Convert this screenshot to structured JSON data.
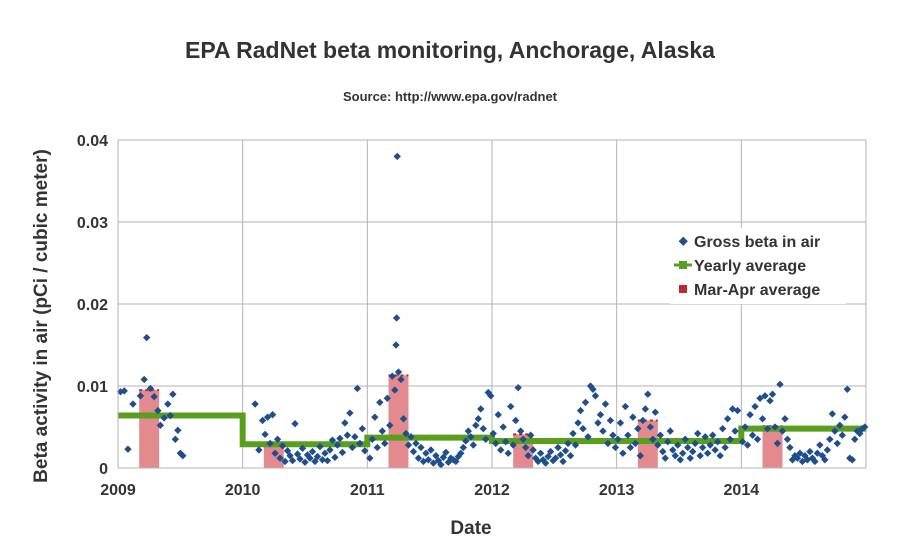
{
  "chart_data": {
    "type": "scatter",
    "title": "EPA RadNet beta monitoring, Anchorage, Alaska",
    "subtitle": "Source: http://www.epa.gov/radnet",
    "xlabel": "Date",
    "ylabel": "Beta activity in air (pCi / cubic meter)",
    "xlim": [
      2009,
      2015
    ],
    "ylim": [
      0,
      0.04
    ],
    "x_ticks": [
      "2009",
      "2010",
      "2011",
      "2012",
      "2013",
      "2014"
    ],
    "y_ticks": [
      "0",
      "0.01",
      "0.02",
      "0.03",
      "0.04"
    ],
    "grid": true,
    "legend_position": "right",
    "colors": {
      "gross_beta": "#1f4e8c",
      "yearly_average": "#5a9e1e",
      "mar_apr_average": "#c0282d",
      "mar_apr_fill": "#e38a8f",
      "grid": "#b3b3b3"
    },
    "series": [
      {
        "name": "Gross beta in air",
        "type": "scatter",
        "points": [
          [
            2009.02,
            0.0093
          ],
          [
            2009.05,
            0.0094
          ],
          [
            2009.08,
            0.0023
          ],
          [
            2009.12,
            0.0078
          ],
          [
            2009.18,
            0.0088
          ],
          [
            2009.21,
            0.0108
          ],
          [
            2009.23,
            0.0159
          ],
          [
            2009.26,
            0.0097
          ],
          [
            2009.29,
            0.0087
          ],
          [
            2009.32,
            0.007
          ],
          [
            2009.34,
            0.0052
          ],
          [
            2009.37,
            0.0061
          ],
          [
            2009.4,
            0.0078
          ],
          [
            2009.42,
            0.0064
          ],
          [
            2009.44,
            0.009
          ],
          [
            2009.46,
            0.0035
          ],
          [
            2009.48,
            0.0046
          ],
          [
            2009.5,
            0.0018
          ],
          [
            2009.52,
            0.0015
          ],
          [
            2010.1,
            0.0078
          ],
          [
            2010.13,
            0.0022
          ],
          [
            2010.16,
            0.0058
          ],
          [
            2010.18,
            0.0041
          ],
          [
            2010.2,
            0.0062
          ],
          [
            2010.22,
            0.003
          ],
          [
            2010.24,
            0.0065
          ],
          [
            2010.26,
            0.0018
          ],
          [
            2010.28,
            0.0035
          ],
          [
            2010.3,
            0.0012
          ],
          [
            2010.32,
            0.0027
          ],
          [
            2010.34,
            0.0008
          ],
          [
            2010.36,
            0.0021
          ],
          [
            2010.38,
            0.0015
          ],
          [
            2010.4,
            0.0009
          ],
          [
            2010.42,
            0.0054
          ],
          [
            2010.44,
            0.0017
          ],
          [
            2010.46,
            0.0011
          ],
          [
            2010.48,
            0.0024
          ],
          [
            2010.5,
            0.0007
          ],
          [
            2010.52,
            0.0016
          ],
          [
            2010.54,
            0.0012
          ],
          [
            2010.56,
            0.002
          ],
          [
            2010.58,
            0.0008
          ],
          [
            2010.6,
            0.0014
          ],
          [
            2010.62,
            0.0026
          ],
          [
            2010.64,
            0.001
          ],
          [
            2010.66,
            0.0018
          ],
          [
            2010.68,
            0.0009
          ],
          [
            2010.7,
            0.0022
          ],
          [
            2010.72,
            0.0034
          ],
          [
            2010.74,
            0.0013
          ],
          [
            2010.76,
            0.0028
          ],
          [
            2010.78,
            0.0036
          ],
          [
            2010.8,
            0.0019
          ],
          [
            2010.82,
            0.0055
          ],
          [
            2010.84,
            0.004
          ],
          [
            2010.86,
            0.0067
          ],
          [
            2010.88,
            0.0025
          ],
          [
            2010.9,
            0.0038
          ],
          [
            2010.92,
            0.0097
          ],
          [
            2010.94,
            0.003
          ],
          [
            2010.96,
            0.0048
          ],
          [
            2010.98,
            0.0021
          ],
          [
            2011.02,
            0.0012
          ],
          [
            2011.04,
            0.0035
          ],
          [
            2011.06,
            0.0062
          ],
          [
            2011.08,
            0.0025
          ],
          [
            2011.1,
            0.008
          ],
          [
            2011.12,
            0.0045
          ],
          [
            2011.14,
            0.003
          ],
          [
            2011.16,
            0.0085
          ],
          [
            2011.18,
            0.0052
          ],
          [
            2011.2,
            0.0112
          ],
          [
            2011.22,
            0.0095
          ],
          [
            2011.23,
            0.015
          ],
          [
            2011.235,
            0.0183
          ],
          [
            2011.24,
            0.038
          ],
          [
            2011.25,
            0.0117
          ],
          [
            2011.27,
            0.0108
          ],
          [
            2011.29,
            0.006
          ],
          [
            2011.31,
            0.0042
          ],
          [
            2011.33,
            0.0028
          ],
          [
            2011.35,
            0.0038
          ],
          [
            2011.37,
            0.002
          ],
          [
            2011.39,
            0.003
          ],
          [
            2011.41,
            0.0012
          ],
          [
            2011.43,
            0.0025
          ],
          [
            2011.45,
            0.0008
          ],
          [
            2011.47,
            0.0018
          ],
          [
            2011.49,
            0.001
          ],
          [
            2011.51,
            0.0022
          ],
          [
            2011.53,
            0.0006
          ],
          [
            2011.55,
            0.0015
          ],
          [
            2011.57,
            0.0009
          ],
          [
            2011.59,
            0.0004
          ],
          [
            2011.61,
            0.0013
          ],
          [
            2011.63,
            0.0019
          ],
          [
            2011.65,
            0.0007
          ],
          [
            2011.67,
            0.0012
          ],
          [
            2011.69,
            0.001
          ],
          [
            2011.71,
            0.0008
          ],
          [
            2011.73,
            0.0014
          ],
          [
            2011.75,
            0.0018
          ],
          [
            2011.77,
            0.0025
          ],
          [
            2011.79,
            0.0033
          ],
          [
            2011.81,
            0.0045
          ],
          [
            2011.83,
            0.0038
          ],
          [
            2011.85,
            0.0028
          ],
          [
            2011.87,
            0.0052
          ],
          [
            2011.89,
            0.006
          ],
          [
            2011.91,
            0.0072
          ],
          [
            2011.93,
            0.0048
          ],
          [
            2011.95,
            0.0035
          ],
          [
            2011.97,
            0.0092
          ],
          [
            2011.99,
            0.0088
          ],
          [
            2012.01,
            0.0042
          ],
          [
            2012.03,
            0.003
          ],
          [
            2012.05,
            0.0065
          ],
          [
            2012.07,
            0.0022
          ],
          [
            2012.09,
            0.005
          ],
          [
            2012.11,
            0.0032
          ],
          [
            2012.13,
            0.0018
          ],
          [
            2012.15,
            0.0075
          ],
          [
            2012.17,
            0.0028
          ],
          [
            2012.19,
            0.0058
          ],
          [
            2012.21,
            0.0098
          ],
          [
            2012.23,
            0.0045
          ],
          [
            2012.25,
            0.0035
          ],
          [
            2012.27,
            0.0025
          ],
          [
            2012.29,
            0.0015
          ],
          [
            2012.31,
            0.004
          ],
          [
            2012.33,
            0.0022
          ],
          [
            2012.35,
            0.0012
          ],
          [
            2012.37,
            0.0008
          ],
          [
            2012.39,
            0.0018
          ],
          [
            2012.41,
            0.001
          ],
          [
            2012.43,
            0.0006
          ],
          [
            2012.45,
            0.0014
          ],
          [
            2012.47,
            0.002
          ],
          [
            2012.49,
            0.0009
          ],
          [
            2012.51,
            0.0012
          ],
          [
            2012.53,
            0.0025
          ],
          [
            2012.55,
            0.0016
          ],
          [
            2012.57,
            0.0008
          ],
          [
            2012.59,
            0.0021
          ],
          [
            2012.61,
            0.003
          ],
          [
            2012.63,
            0.0015
          ],
          [
            2012.65,
            0.0042
          ],
          [
            2012.67,
            0.0028
          ],
          [
            2012.69,
            0.0055
          ],
          [
            2012.71,
            0.007
          ],
          [
            2012.73,
            0.0048
          ],
          [
            2012.75,
            0.008
          ],
          [
            2012.77,
            0.0038
          ],
          [
            2012.79,
            0.01
          ],
          [
            2012.81,
            0.0096
          ],
          [
            2012.83,
            0.0088
          ],
          [
            2012.85,
            0.0055
          ],
          [
            2012.87,
            0.0065
          ],
          [
            2012.89,
            0.0045
          ],
          [
            2012.91,
            0.0078
          ],
          [
            2012.93,
            0.003
          ],
          [
            2012.95,
            0.0058
          ],
          [
            2012.97,
            0.004
          ],
          [
            2012.99,
            0.0025
          ],
          [
            2013.01,
            0.0035
          ],
          [
            2013.03,
            0.0055
          ],
          [
            2013.05,
            0.0018
          ],
          [
            2013.07,
            0.0075
          ],
          [
            2013.09,
            0.004
          ],
          [
            2013.11,
            0.0025
          ],
          [
            2013.13,
            0.0062
          ],
          [
            2013.15,
            0.003
          ],
          [
            2013.17,
            0.0048
          ],
          [
            2013.19,
            0.0015
          ],
          [
            2013.21,
            0.0058
          ],
          [
            2013.23,
            0.0072
          ],
          [
            2013.25,
            0.009
          ],
          [
            2013.27,
            0.005
          ],
          [
            2013.29,
            0.0035
          ],
          [
            2013.31,
            0.0068
          ],
          [
            2013.33,
            0.0028
          ],
          [
            2013.35,
            0.004
          ],
          [
            2013.37,
            0.002
          ],
          [
            2013.39,
            0.0012
          ],
          [
            2013.41,
            0.0032
          ],
          [
            2013.43,
            0.0045
          ],
          [
            2013.45,
            0.0022
          ],
          [
            2013.47,
            0.0015
          ],
          [
            2013.49,
            0.0028
          ],
          [
            2013.51,
            0.001
          ],
          [
            2013.53,
            0.0018
          ],
          [
            2013.55,
            0.0035
          ],
          [
            2013.57,
            0.0025
          ],
          [
            2013.59,
            0.0012
          ],
          [
            2013.61,
            0.002
          ],
          [
            2013.63,
            0.003
          ],
          [
            2013.65,
            0.0042
          ],
          [
            2013.67,
            0.0015
          ],
          [
            2013.69,
            0.0025
          ],
          [
            2013.71,
            0.0038
          ],
          [
            2013.73,
            0.0018
          ],
          [
            2013.75,
            0.0028
          ],
          [
            2013.77,
            0.004
          ],
          [
            2013.79,
            0.0022
          ],
          [
            2013.81,
            0.0032
          ],
          [
            2013.83,
            0.0015
          ],
          [
            2013.85,
            0.0048
          ],
          [
            2013.87,
            0.0025
          ],
          [
            2013.89,
            0.006
          ],
          [
            2013.91,
            0.0035
          ],
          [
            2013.93,
            0.0072
          ],
          [
            2013.95,
            0.0045
          ],
          [
            2013.97,
            0.007
          ],
          [
            2014.01,
            0.0032
          ],
          [
            2014.03,
            0.005
          ],
          [
            2014.05,
            0.0028
          ],
          [
            2014.07,
            0.0065
          ],
          [
            2014.09,
            0.004
          ],
          [
            2014.11,
            0.0075
          ],
          [
            2014.13,
            0.0035
          ],
          [
            2014.15,
            0.0085
          ],
          [
            2014.17,
            0.006
          ],
          [
            2014.19,
            0.0088
          ],
          [
            2014.21,
            0.0048
          ],
          [
            2014.23,
            0.0082
          ],
          [
            2014.25,
            0.009
          ],
          [
            2014.27,
            0.005
          ],
          [
            2014.29,
            0.003
          ],
          [
            2014.31,
            0.0102
          ],
          [
            2014.33,
            0.0045
          ],
          [
            2014.35,
            0.006
          ],
          [
            2014.37,
            0.0035
          ],
          [
            2014.39,
            0.0025
          ],
          [
            2014.41,
            0.001
          ],
          [
            2014.43,
            0.0015
          ],
          [
            2014.45,
            0.0012
          ],
          [
            2014.47,
            0.0018
          ],
          [
            2014.49,
            0.0008
          ],
          [
            2014.51,
            0.0015
          ],
          [
            2014.53,
            0.001
          ],
          [
            2014.55,
            0.002
          ],
          [
            2014.57,
            0.0012
          ],
          [
            2014.59,
            0.0008
          ],
          [
            2014.61,
            0.0018
          ],
          [
            2014.63,
            0.0028
          ],
          [
            2014.65,
            0.0015
          ],
          [
            2014.67,
            0.001
          ],
          [
            2014.69,
            0.0022
          ],
          [
            2014.71,
            0.0035
          ],
          [
            2014.73,
            0.0066
          ],
          [
            2014.75,
            0.0045
          ],
          [
            2014.77,
            0.003
          ],
          [
            2014.79,
            0.0052
          ],
          [
            2014.81,
            0.004
          ],
          [
            2014.83,
            0.0062
          ],
          [
            2014.85,
            0.0096
          ],
          [
            2014.87,
            0.0012
          ],
          [
            2014.89,
            0.001
          ],
          [
            2014.91,
            0.0035
          ],
          [
            2014.93,
            0.0045
          ],
          [
            2014.95,
            0.0042
          ],
          [
            2014.97,
            0.0048
          ],
          [
            2014.99,
            0.005
          ]
        ]
      },
      {
        "name": "Yearly average",
        "type": "step",
        "segments": [
          {
            "x_start": 2009,
            "x_end": 2010,
            "value": 0.0064
          },
          {
            "x_start": 2010,
            "x_end": 2011,
            "value": 0.0029
          },
          {
            "x_start": 2011,
            "x_end": 2012,
            "value": 0.0037
          },
          {
            "x_start": 2012,
            "x_end": 2013,
            "value": 0.0033
          },
          {
            "x_start": 2013,
            "x_end": 2014,
            "value": 0.0033
          },
          {
            "x_start": 2014,
            "x_end": 2015,
            "value": 0.0048
          }
        ]
      },
      {
        "name": "Mar-Apr average",
        "type": "bar",
        "segments": [
          {
            "x_start": 2009.17,
            "x_end": 2009.33,
            "value": 0.0095
          },
          {
            "x_start": 2010.17,
            "x_end": 2010.33,
            "value": 0.0029
          },
          {
            "x_start": 2011.17,
            "x_end": 2011.33,
            "value": 0.0113
          },
          {
            "x_start": 2012.17,
            "x_end": 2012.33,
            "value": 0.0041
          },
          {
            "x_start": 2013.17,
            "x_end": 2013.33,
            "value": 0.0058
          },
          {
            "x_start": 2014.17,
            "x_end": 2014.33,
            "value": 0.0051
          }
        ]
      }
    ],
    "legend": [
      "Gross beta in air",
      "Yearly average",
      "Mar-Apr average"
    ]
  }
}
